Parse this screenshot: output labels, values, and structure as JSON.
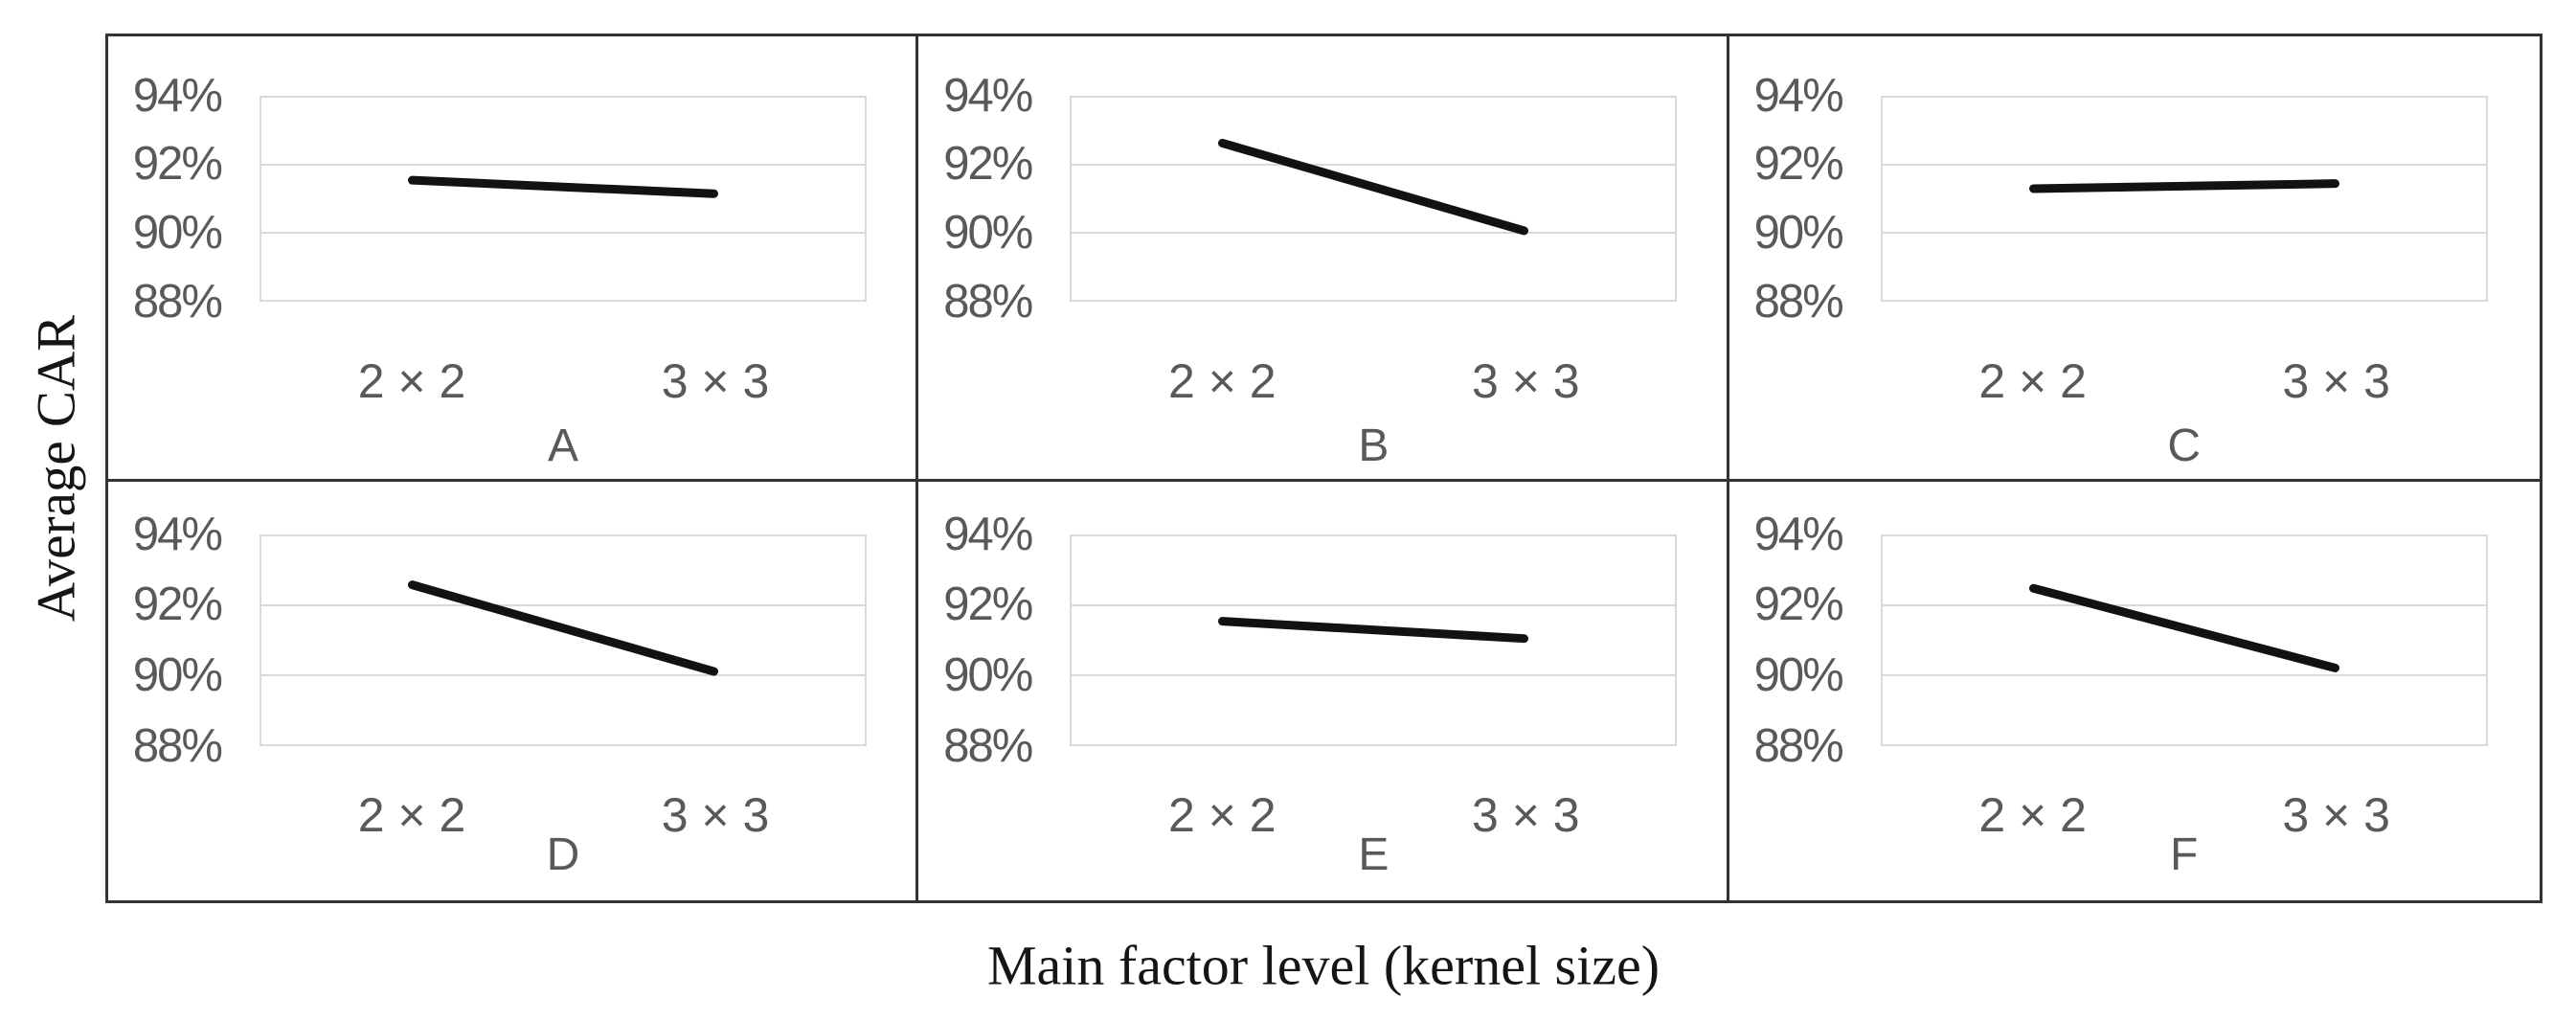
{
  "figure": {
    "y_axis_title": "Average CAR",
    "x_axis_title": "Main factor level (kernel size)"
  },
  "chart_data": {
    "type": "line",
    "layout": "2x3-small-multiples",
    "title": "",
    "xlabel": "Main factor level (kernel size)",
    "ylabel": "Average CAR",
    "x_categories": [
      "2 × 2",
      "3 × 3"
    ],
    "y_ticks": [
      "94%",
      "92%",
      "90%",
      "88%"
    ],
    "y_range_percent": [
      88,
      94
    ],
    "grid": true,
    "legend": false,
    "panels": [
      {
        "label": "A",
        "values": [
          91.55,
          91.15
        ]
      },
      {
        "label": "B",
        "values": [
          92.65,
          90.05
        ]
      },
      {
        "label": "C",
        "values": [
          91.3,
          91.45
        ]
      },
      {
        "label": "D",
        "values": [
          92.6,
          90.1
        ]
      },
      {
        "label": "E",
        "values": [
          91.55,
          91.05
        ]
      },
      {
        "label": "F",
        "values": [
          92.5,
          90.2
        ]
      }
    ],
    "colors": {
      "line": "#121212",
      "tick_text": "#595959",
      "gridline": "#d9d9d9",
      "outer_border": "#333333",
      "axis_title_text": "#151515"
    }
  }
}
